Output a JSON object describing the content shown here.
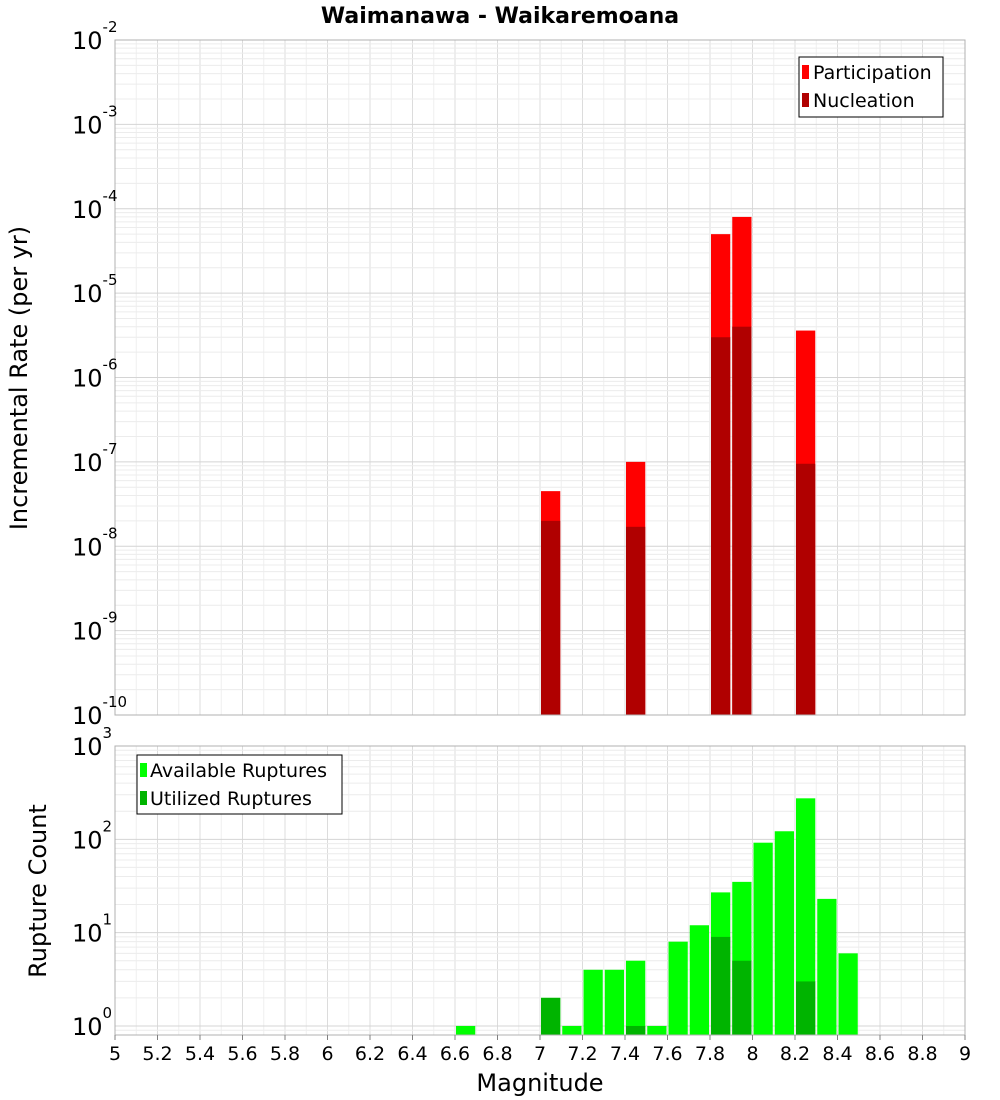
{
  "chart_data": [
    {
      "type": "bar",
      "title": "Waimanawa - Waikaremoana",
      "xlabel": "",
      "ylabel": "Incremental Rate (per yr)",
      "x_range": [
        5,
        9
      ],
      "y_scale": "log",
      "ylim": [
        1e-10,
        0.01
      ],
      "y_ticks": [
        {
          "base": "10",
          "exp": "-10"
        },
        {
          "base": "10",
          "exp": "-9"
        },
        {
          "base": "10",
          "exp": "-8"
        },
        {
          "base": "10",
          "exp": "-7"
        },
        {
          "base": "10",
          "exp": "-6"
        },
        {
          "base": "10",
          "exp": "-5"
        },
        {
          "base": "10",
          "exp": "-4"
        },
        {
          "base": "10",
          "exp": "-3"
        },
        {
          "base": "10",
          "exp": "-2"
        }
      ],
      "grid": true,
      "legend_position": "top-right",
      "series": [
        {
          "name": "Participation",
          "color": "#ff0000",
          "x": [
            7.05,
            7.45,
            7.85,
            7.95,
            8.25
          ],
          "values": [
            4.5e-08,
            1e-07,
            5e-05,
            8e-05,
            3.6e-06
          ]
        },
        {
          "name": "Nucleation",
          "color": "#b00000",
          "x": [
            7.05,
            7.45,
            7.85,
            7.95,
            8.25
          ],
          "values": [
            2e-08,
            1.7e-08,
            3e-06,
            4e-06,
            9.5e-08
          ]
        }
      ]
    },
    {
      "type": "bar",
      "xlabel": "Magnitude",
      "ylabel": "Rupture Count",
      "x_range": [
        5,
        9
      ],
      "x_ticks": [
        "5",
        "5.2",
        "5.4",
        "5.6",
        "5.8",
        "6",
        "6.2",
        "6.4",
        "6.6",
        "6.8",
        "7",
        "7.2",
        "7.4",
        "7.6",
        "7.8",
        "8",
        "8.2",
        "8.4",
        "8.6",
        "8.8",
        "9"
      ],
      "y_scale": "log",
      "ylim": [
        0.8,
        1000
      ],
      "y_ticks": [
        {
          "base": "10",
          "exp": "0"
        },
        {
          "base": "10",
          "exp": "1"
        },
        {
          "base": "10",
          "exp": "2"
        },
        {
          "base": "10",
          "exp": "3"
        }
      ],
      "grid": true,
      "legend_position": "top-left",
      "series": [
        {
          "name": "Available Ruptures",
          "color": "#00ff00",
          "x": [
            6.65,
            7.05,
            7.15,
            7.25,
            7.35,
            7.45,
            7.55,
            7.65,
            7.75,
            7.85,
            7.95,
            8.05,
            8.15,
            8.25,
            8.35,
            8.45
          ],
          "values": [
            1,
            2,
            1,
            4,
            4,
            5,
            1,
            8,
            12,
            27,
            35,
            92,
            122,
            275,
            23,
            6
          ]
        },
        {
          "name": "Utilized Ruptures",
          "color": "#00b400",
          "x": [
            7.05,
            7.45,
            7.85,
            7.95,
            8.25
          ],
          "values": [
            2,
            1,
            9,
            5,
            3
          ]
        }
      ]
    }
  ]
}
